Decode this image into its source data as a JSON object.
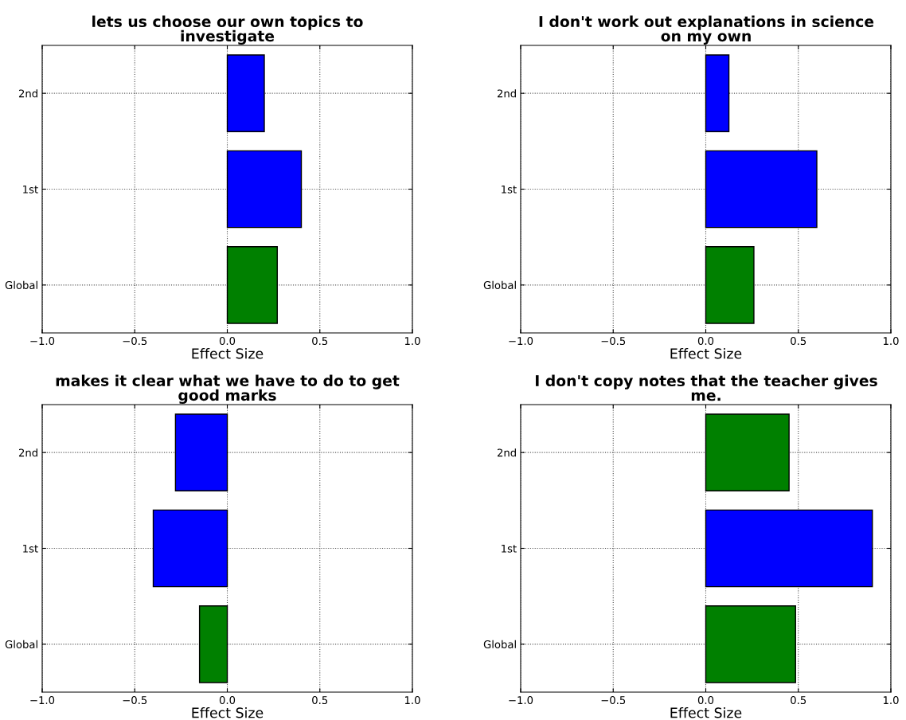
{
  "chart_data": [
    {
      "type": "bar",
      "orientation": "horizontal",
      "title": "lets us choose our own topics to investigate",
      "xlabel": "Effect Size",
      "categories": [
        "2nd",
        "1st",
        "Global"
      ],
      "values": [
        0.2,
        0.4,
        0.27
      ],
      "colors": [
        "#0000ff",
        "#0000ff",
        "#008000"
      ],
      "xlim": [
        -1,
        1
      ],
      "xticks": [
        {
          "value": -1,
          "label": "−1.0"
        },
        {
          "value": -0.5,
          "label": "−0.5"
        },
        {
          "value": 0,
          "label": "0.0"
        },
        {
          "value": 0.5,
          "label": "0.5"
        },
        {
          "value": 1,
          "label": "1.0"
        }
      ],
      "grid": true
    },
    {
      "type": "bar",
      "orientation": "horizontal",
      "title": "I don't work out explanations in science on my own",
      "xlabel": "Effect Size",
      "categories": [
        "2nd",
        "1st",
        "Global"
      ],
      "values": [
        0.125,
        0.6,
        0.26
      ],
      "colors": [
        "#0000ff",
        "#0000ff",
        "#008000"
      ],
      "xlim": [
        -1,
        1
      ],
      "xticks": [
        {
          "value": -1,
          "label": "−1.0"
        },
        {
          "value": -0.5,
          "label": "−0.5"
        },
        {
          "value": 0,
          "label": "0.0"
        },
        {
          "value": 0.5,
          "label": "0.5"
        },
        {
          "value": 1,
          "label": "1.0"
        }
      ],
      "grid": true
    },
    {
      "type": "bar",
      "orientation": "horizontal",
      "title": "makes it clear what we have to do to get good marks",
      "xlabel": "Effect Size",
      "categories": [
        "2nd",
        "1st",
        "Global"
      ],
      "values": [
        -0.28,
        -0.4,
        -0.15
      ],
      "colors": [
        "#0000ff",
        "#0000ff",
        "#008000"
      ],
      "xlim": [
        -1,
        1
      ],
      "xticks": [
        {
          "value": -1,
          "label": "−1.0"
        },
        {
          "value": -0.5,
          "label": "−0.5"
        },
        {
          "value": 0,
          "label": "0.0"
        },
        {
          "value": 0.5,
          "label": "0.5"
        },
        {
          "value": 1,
          "label": "1.0"
        }
      ],
      "grid": true
    },
    {
      "type": "bar",
      "orientation": "horizontal",
      "title": "I don't copy notes that the teacher gives me.",
      "xlabel": "Effect Size",
      "categories": [
        "2nd",
        "1st",
        "Global"
      ],
      "values": [
        0.45,
        0.9,
        0.485
      ],
      "colors": [
        "#008000",
        "#0000ff",
        "#008000"
      ],
      "xlim": [
        -1,
        1
      ],
      "xticks": [
        {
          "value": -1,
          "label": "−1.0"
        },
        {
          "value": -0.5,
          "label": "−0.5"
        },
        {
          "value": 0,
          "label": "0.0"
        },
        {
          "value": 0.5,
          "label": "0.5"
        },
        {
          "value": 1,
          "label": "1.0"
        }
      ],
      "grid": true
    }
  ]
}
